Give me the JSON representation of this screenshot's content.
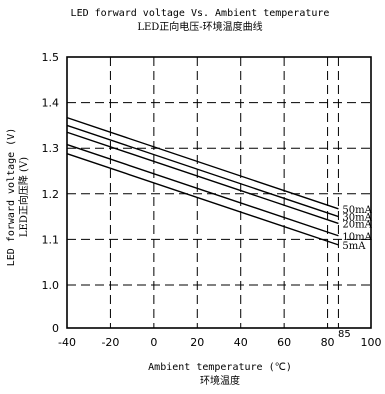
{
  "chart_data": {
    "type": "line",
    "title": "LED forward voltage Vs. Ambient temperature",
    "subtitle": "LED正向电压-环境温度曲线",
    "xlabel": "Ambient temperature (℃)",
    "xlabel_cn": "环境温度",
    "ylabel": "LED forward voltage (V)",
    "ylabel_cn": "LED正向压降 (V)",
    "xlim": [
      -40,
      100
    ],
    "ylim": [
      1.0,
      1.5
    ],
    "y_break_label": "0",
    "x_ticks": [
      "-40",
      "-20",
      "0",
      "20",
      "40",
      "60",
      "80",
      "100"
    ],
    "y_ticks": [
      "1.0",
      "1.1",
      "1.2",
      "1.3",
      "1.4",
      "1.5"
    ],
    "extra_x_tick": "85",
    "grid": "dashed",
    "series": [
      {
        "name": "50mA",
        "x": [
          -40,
          85
        ],
        "values": [
          1.367,
          1.167
        ]
      },
      {
        "name": "30mA",
        "x": [
          -40,
          85
        ],
        "values": [
          1.35,
          1.15
        ]
      },
      {
        "name": "20mA",
        "x": [
          -40,
          85
        ],
        "values": [
          1.335,
          1.135
        ]
      },
      {
        "name": "10mA",
        "x": [
          -40,
          85
        ],
        "values": [
          1.308,
          1.108
        ]
      },
      {
        "name": "5mA",
        "x": [
          -40,
          85
        ],
        "values": [
          1.288,
          1.088
        ]
      }
    ]
  }
}
